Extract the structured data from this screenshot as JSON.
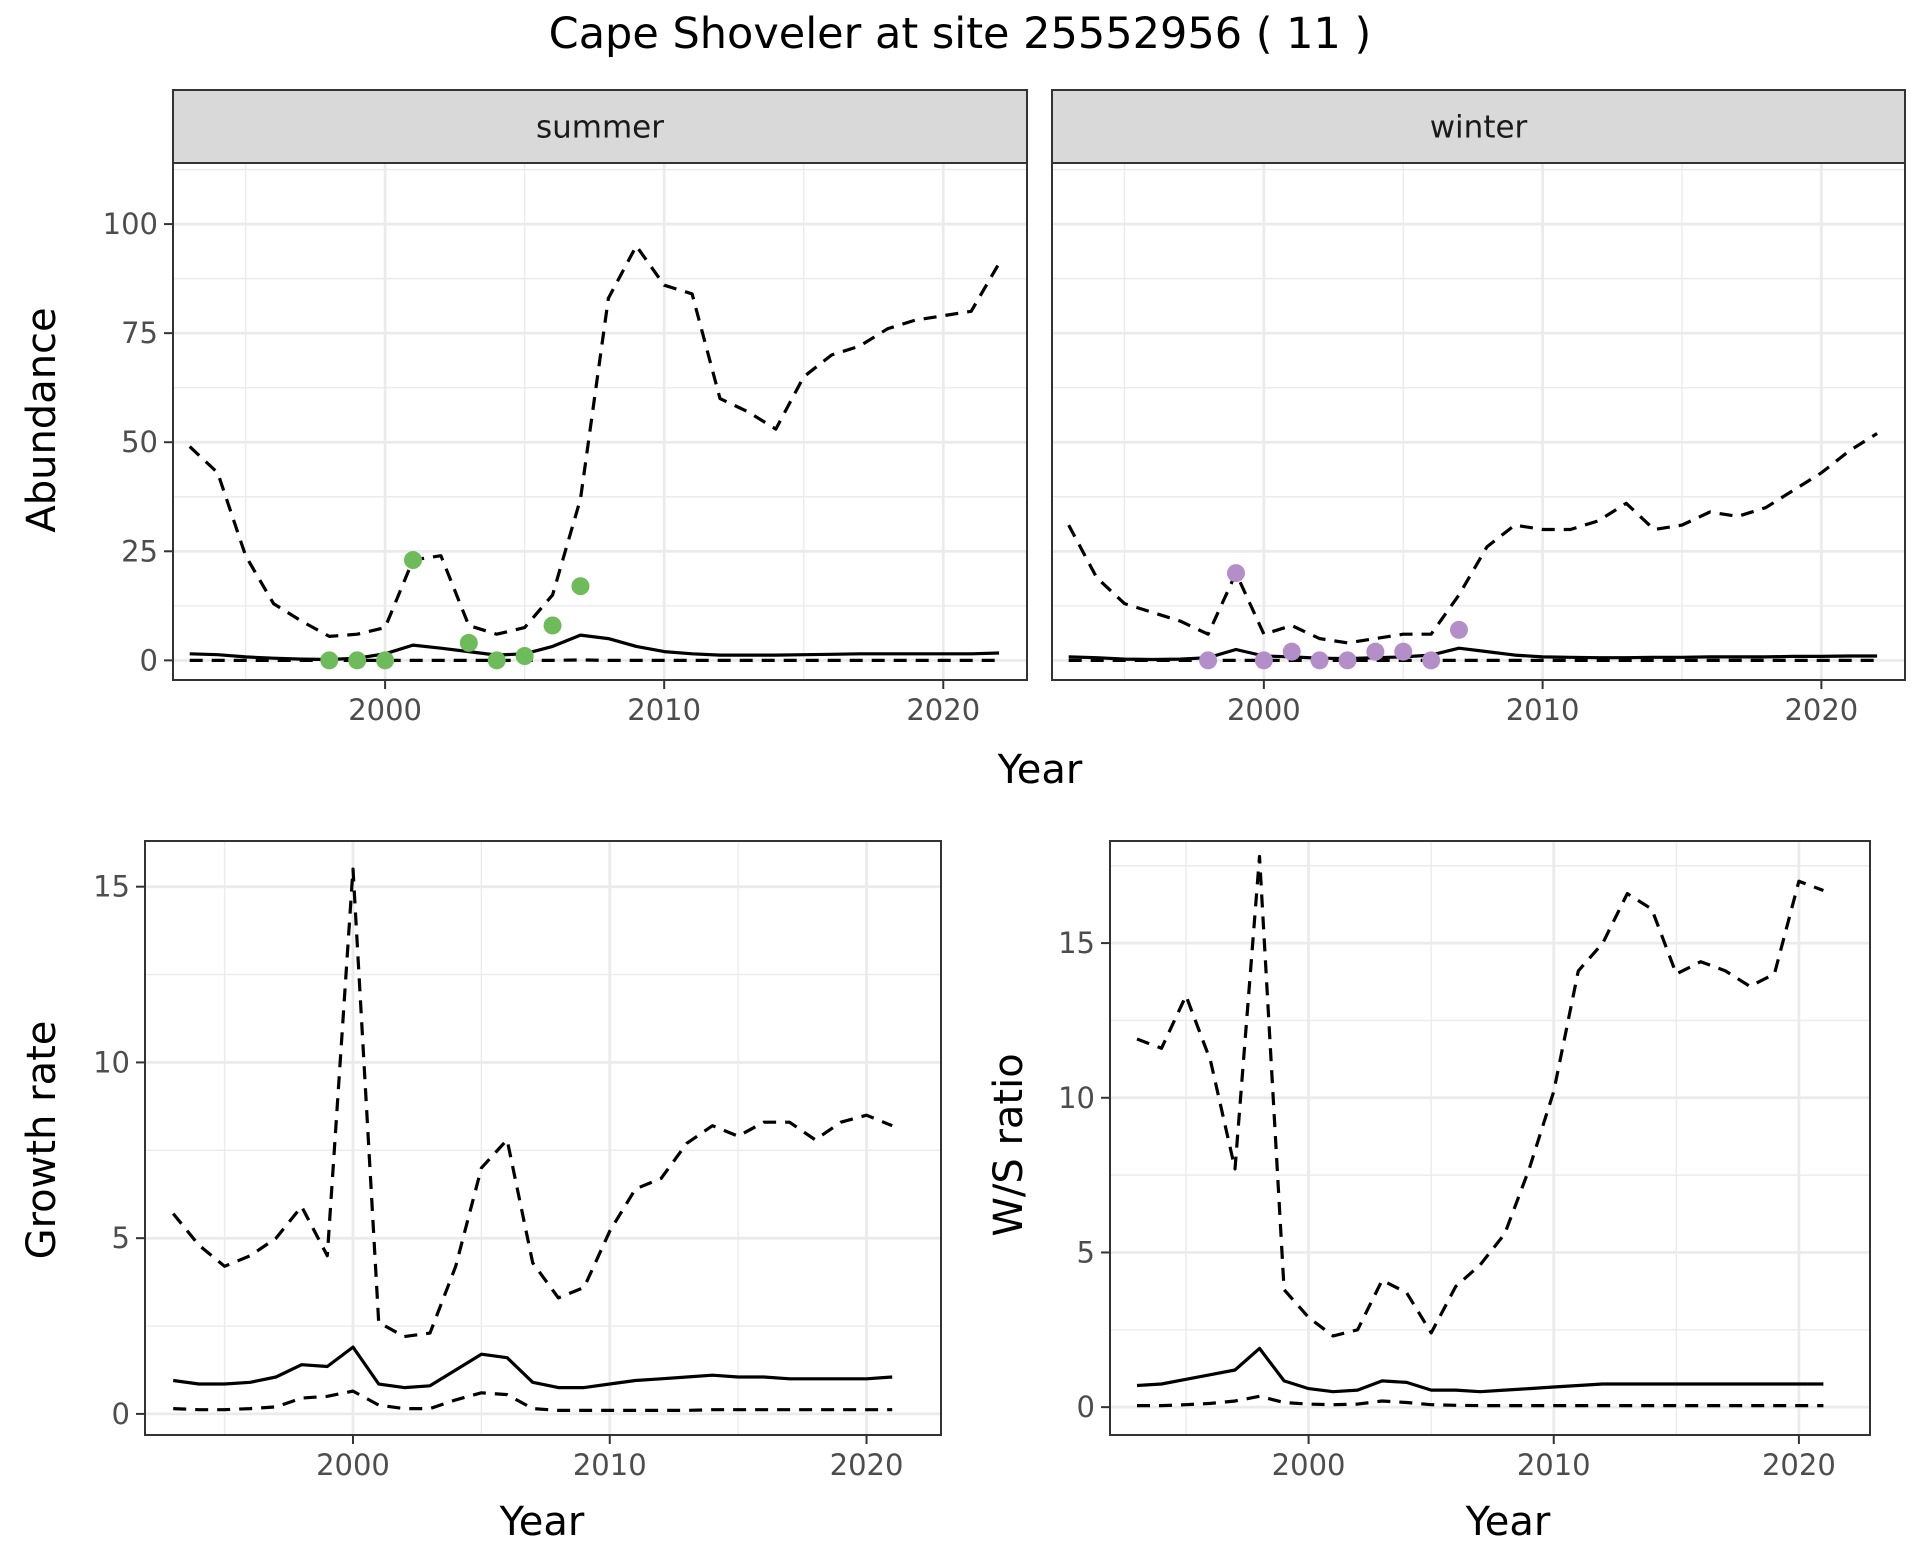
{
  "title": "Cape Shoveler at site 25552956 ( 11 )",
  "colors": {
    "summer_points": "#6dbb5a",
    "winter_points": "#b48ec8",
    "line": "#000000",
    "grid": "#ebebeb",
    "strip": "#d9d9d9"
  },
  "chart_data": [
    {
      "type": "line",
      "panel": "summer",
      "strip_label": "summer",
      "xlabel": "Year",
      "ylabel": "Abundance",
      "xlim": [
        1992.4,
        2023.0
      ],
      "ylim": [
        -4.5,
        114
      ],
      "xticks": [
        2000,
        2010,
        2020
      ],
      "yticks": [
        0,
        25,
        50,
        75,
        100
      ],
      "series": [
        {
          "role": "estimate",
          "style": "solid",
          "x": [
            1993,
            1994,
            1995,
            1996,
            1997,
            1998,
            1999,
            2000,
            2001,
            2002,
            2003,
            2004,
            2005,
            2006,
            2007,
            2008,
            2009,
            2010,
            2011,
            2012,
            2013,
            2014,
            2015,
            2016,
            2017,
            2018,
            2019,
            2020,
            2021,
            2022
          ],
          "y": [
            1.5,
            1.3,
            0.8,
            0.5,
            0.3,
            0.2,
            0.5,
            1.5,
            3.5,
            2.8,
            2.0,
            1.2,
            1.5,
            3.2,
            5.8,
            5.0,
            3.2,
            2.0,
            1.5,
            1.2,
            1.2,
            1.2,
            1.3,
            1.4,
            1.5,
            1.5,
            1.5,
            1.5,
            1.5,
            1.7
          ]
        },
        {
          "role": "upper",
          "style": "dashed",
          "x": [
            1993,
            1994,
            1995,
            1996,
            1997,
            1998,
            1999,
            2000,
            2001,
            2002,
            2003,
            2004,
            2005,
            2006,
            2007,
            2008,
            2009,
            2010,
            2011,
            2012,
            2013,
            2014,
            2015,
            2016,
            2017,
            2018,
            2019,
            2020,
            2021,
            2022
          ],
          "y": [
            49,
            43,
            24,
            13,
            9,
            5.5,
            6,
            7.5,
            23,
            24,
            8,
            6,
            7.5,
            15,
            37,
            83,
            95,
            86,
            84,
            60,
            57,
            53,
            65,
            70,
            72,
            76,
            78,
            79,
            80,
            91
          ]
        },
        {
          "role": "lower",
          "style": "dashed",
          "x": [
            1993,
            1994,
            1995,
            1996,
            1997,
            1998,
            1999,
            2000,
            2001,
            2002,
            2003,
            2004,
            2005,
            2006,
            2007,
            2008,
            2009,
            2010,
            2011,
            2012,
            2013,
            2014,
            2015,
            2016,
            2017,
            2018,
            2019,
            2020,
            2021,
            2022
          ],
          "y": [
            0,
            0,
            0,
            0,
            0,
            0,
            0,
            0,
            0,
            0,
            0,
            0,
            0,
            0,
            0.1,
            0,
            0,
            0,
            0,
            0,
            0,
            0,
            0,
            0,
            0,
            0,
            0,
            0,
            0,
            0
          ]
        }
      ],
      "points": {
        "x": [
          1998,
          1999,
          2000,
          2001,
          2003,
          2004,
          2005,
          2006,
          2007
        ],
        "y": [
          0,
          0,
          0,
          23,
          4,
          0,
          1,
          8,
          17
        ]
      }
    },
    {
      "type": "line",
      "panel": "winter",
      "strip_label": "winter",
      "xlabel": "Year",
      "ylabel": "Abundance",
      "xlim": [
        1992.4,
        2023.0
      ],
      "ylim": [
        -4.5,
        114
      ],
      "xticks": [
        2000,
        2010,
        2020
      ],
      "yticks": [
        0,
        25,
        50,
        75,
        100
      ],
      "series": [
        {
          "role": "estimate",
          "style": "solid",
          "x": [
            1993,
            1994,
            1995,
            1996,
            1997,
            1998,
            1999,
            2000,
            2001,
            2002,
            2003,
            2004,
            2005,
            2006,
            2007,
            2008,
            2009,
            2010,
            2011,
            2012,
            2013,
            2014,
            2015,
            2016,
            2017,
            2018,
            2019,
            2020,
            2021,
            2022
          ],
          "y": [
            0.8,
            0.6,
            0.3,
            0.2,
            0.3,
            0.6,
            2.5,
            1.0,
            0.8,
            0.5,
            0.4,
            0.6,
            0.8,
            1.2,
            2.8,
            2.0,
            1.2,
            0.8,
            0.7,
            0.6,
            0.6,
            0.7,
            0.7,
            0.8,
            0.8,
            0.8,
            0.9,
            0.9,
            1.0,
            1.0
          ]
        },
        {
          "role": "upper",
          "style": "dashed",
          "x": [
            1993,
            1994,
            1995,
            1996,
            1997,
            1998,
            1999,
            2000,
            2001,
            2002,
            2003,
            2004,
            2005,
            2006,
            2007,
            2008,
            2009,
            2010,
            2011,
            2012,
            2013,
            2014,
            2015,
            2016,
            2017,
            2018,
            2019,
            2020,
            2021,
            2022
          ],
          "y": [
            31,
            19,
            13,
            11,
            9,
            6,
            20,
            6,
            8,
            5,
            4,
            5,
            6,
            6,
            15,
            26,
            31,
            30,
            30,
            32,
            36,
            30,
            31,
            34,
            33,
            35,
            39,
            43,
            48,
            52
          ]
        },
        {
          "role": "lower",
          "style": "dashed",
          "x": [
            1993,
            1994,
            1995,
            1996,
            1997,
            1998,
            1999,
            2000,
            2001,
            2002,
            2003,
            2004,
            2005,
            2006,
            2007,
            2008,
            2009,
            2010,
            2011,
            2012,
            2013,
            2014,
            2015,
            2016,
            2017,
            2018,
            2019,
            2020,
            2021,
            2022
          ],
          "y": [
            0,
            0,
            0,
            0,
            0,
            0,
            0,
            0,
            0,
            0,
            0,
            0,
            0,
            0,
            0,
            0,
            0,
            0,
            0,
            0,
            0,
            0,
            0,
            0,
            0,
            0,
            0,
            0,
            0,
            0
          ]
        }
      ],
      "points": {
        "x": [
          1998,
          1999,
          2000,
          2001,
          2002,
          2003,
          2004,
          2005,
          2006,
          2007
        ],
        "y": [
          0,
          20,
          0,
          2,
          0,
          0,
          2,
          2,
          0,
          7
        ]
      }
    },
    {
      "type": "line",
      "panel": "growth",
      "xlabel": "Year",
      "ylabel": "Growth rate",
      "xlim": [
        1991.9,
        2022.9
      ],
      "ylim": [
        -0.6,
        16.3
      ],
      "xticks": [
        2000,
        2010,
        2020
      ],
      "yticks": [
        0,
        5,
        10,
        15
      ],
      "series": [
        {
          "role": "estimate",
          "style": "solid",
          "x": [
            1993,
            1994,
            1995,
            1996,
            1997,
            1998,
            1999,
            2000,
            2001,
            2002,
            2003,
            2004,
            2005,
            2006,
            2007,
            2008,
            2009,
            2010,
            2011,
            2012,
            2013,
            2014,
            2015,
            2016,
            2017,
            2018,
            2019,
            2020,
            2021
          ],
          "y": [
            0.95,
            0.85,
            0.85,
            0.9,
            1.05,
            1.4,
            1.35,
            1.9,
            0.85,
            0.75,
            0.8,
            1.25,
            1.7,
            1.6,
            0.9,
            0.75,
            0.75,
            0.85,
            0.95,
            1.0,
            1.05,
            1.1,
            1.05,
            1.05,
            1.0,
            1.0,
            1.0,
            1.0,
            1.05
          ]
        },
        {
          "role": "upper",
          "style": "dashed",
          "x": [
            1993,
            1994,
            1995,
            1996,
            1997,
            1998,
            1999,
            2000,
            2001,
            2002,
            2003,
            2004,
            2005,
            2006,
            2007,
            2008,
            2009,
            2010,
            2011,
            2012,
            2013,
            2014,
            2015,
            2016,
            2017,
            2018,
            2019,
            2020,
            2021
          ],
          "y": [
            5.7,
            4.8,
            4.2,
            4.5,
            5.0,
            5.9,
            4.5,
            15.5,
            2.6,
            2.2,
            2.3,
            4.2,
            7.0,
            7.8,
            4.3,
            3.3,
            3.6,
            5.2,
            6.4,
            6.7,
            7.7,
            8.2,
            7.9,
            8.3,
            8.3,
            7.8,
            8.3,
            8.5,
            8.2
          ]
        },
        {
          "role": "lower",
          "style": "dashed",
          "x": [
            1993,
            1994,
            1995,
            1996,
            1997,
            1998,
            1999,
            2000,
            2001,
            2002,
            2003,
            2004,
            2005,
            2006,
            2007,
            2008,
            2009,
            2010,
            2011,
            2012,
            2013,
            2014,
            2015,
            2016,
            2017,
            2018,
            2019,
            2020,
            2021
          ],
          "y": [
            0.15,
            0.12,
            0.12,
            0.15,
            0.2,
            0.45,
            0.5,
            0.65,
            0.25,
            0.15,
            0.15,
            0.4,
            0.6,
            0.55,
            0.15,
            0.1,
            0.1,
            0.1,
            0.1,
            0.1,
            0.1,
            0.12,
            0.12,
            0.12,
            0.12,
            0.12,
            0.12,
            0.12,
            0.12
          ]
        }
      ]
    },
    {
      "type": "line",
      "panel": "ratio",
      "xlabel": "Year",
      "ylabel": "W/S ratio",
      "xlim": [
        1991.9,
        2022.9
      ],
      "ylim": [
        -0.9,
        18.3
      ],
      "xticks": [
        2000,
        2010,
        2020
      ],
      "yticks": [
        0,
        5,
        10,
        15
      ],
      "series": [
        {
          "role": "estimate",
          "style": "solid",
          "x": [
            1993,
            1994,
            1995,
            1996,
            1997,
            1998,
            1999,
            2000,
            2001,
            2002,
            2003,
            2004,
            2005,
            2006,
            2007,
            2008,
            2009,
            2010,
            2011,
            2012,
            2013,
            2014,
            2015,
            2016,
            2017,
            2018,
            2019,
            2020,
            2021
          ],
          "y": [
            0.7,
            0.75,
            0.9,
            1.05,
            1.2,
            1.9,
            0.85,
            0.6,
            0.5,
            0.55,
            0.85,
            0.8,
            0.55,
            0.55,
            0.5,
            0.55,
            0.6,
            0.65,
            0.7,
            0.75,
            0.75,
            0.75,
            0.75,
            0.75,
            0.75,
            0.75,
            0.75,
            0.75,
            0.75
          ]
        },
        {
          "role": "upper",
          "style": "dashed",
          "x": [
            1993,
            1994,
            1995,
            1996,
            1997,
            1998,
            1999,
            2000,
            2001,
            2002,
            2003,
            2004,
            2005,
            2006,
            2007,
            2008,
            2009,
            2010,
            2011,
            2012,
            2013,
            2014,
            2015,
            2016,
            2017,
            2018,
            2019,
            2020,
            2021
          ],
          "y": [
            11.9,
            11.6,
            13.3,
            11.2,
            7.7,
            17.8,
            3.8,
            2.9,
            2.3,
            2.5,
            4.1,
            3.7,
            2.4,
            3.9,
            4.6,
            5.6,
            7.7,
            10.2,
            14.1,
            15.0,
            16.6,
            16.1,
            14.0,
            14.4,
            14.1,
            13.6,
            14.0,
            17.0,
            16.7
          ]
        },
        {
          "role": "lower",
          "style": "dashed",
          "x": [
            1993,
            1994,
            1995,
            1996,
            1997,
            1998,
            1999,
            2000,
            2001,
            2002,
            2003,
            2004,
            2005,
            2006,
            2007,
            2008,
            2009,
            2010,
            2011,
            2012,
            2013,
            2014,
            2015,
            2016,
            2017,
            2018,
            2019,
            2020,
            2021
          ],
          "y": [
            0.05,
            0.05,
            0.08,
            0.12,
            0.2,
            0.35,
            0.15,
            0.1,
            0.08,
            0.1,
            0.2,
            0.15,
            0.08,
            0.06,
            0.05,
            0.05,
            0.05,
            0.05,
            0.05,
            0.05,
            0.05,
            0.05,
            0.05,
            0.05,
            0.05,
            0.05,
            0.05,
            0.05,
            0.05
          ]
        }
      ]
    }
  ]
}
